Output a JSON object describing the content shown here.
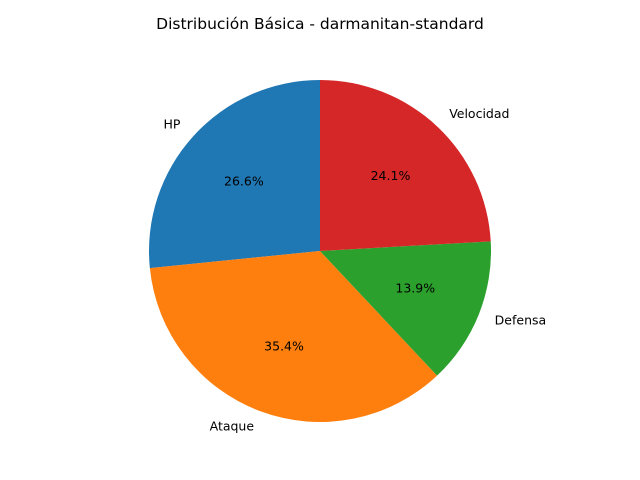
{
  "chart_data": {
    "type": "pie",
    "title": "Distribución Básica - darmanitan-standard",
    "start_angle_deg": 90,
    "direction": "counterclockwise",
    "slices": [
      {
        "label": "HP",
        "value": 26.6,
        "color": "#1f77b4"
      },
      {
        "label": "Ataque",
        "value": 35.4,
        "color": "#ff7f0e"
      },
      {
        "label": "Defensa",
        "value": 13.9,
        "color": "#2ca02c"
      },
      {
        "label": "Velocidad",
        "value": 24.1,
        "color": "#d62728"
      }
    ],
    "pct_labels": [
      "26.6%",
      "35.4%",
      "13.9%",
      "24.1%"
    ]
  }
}
